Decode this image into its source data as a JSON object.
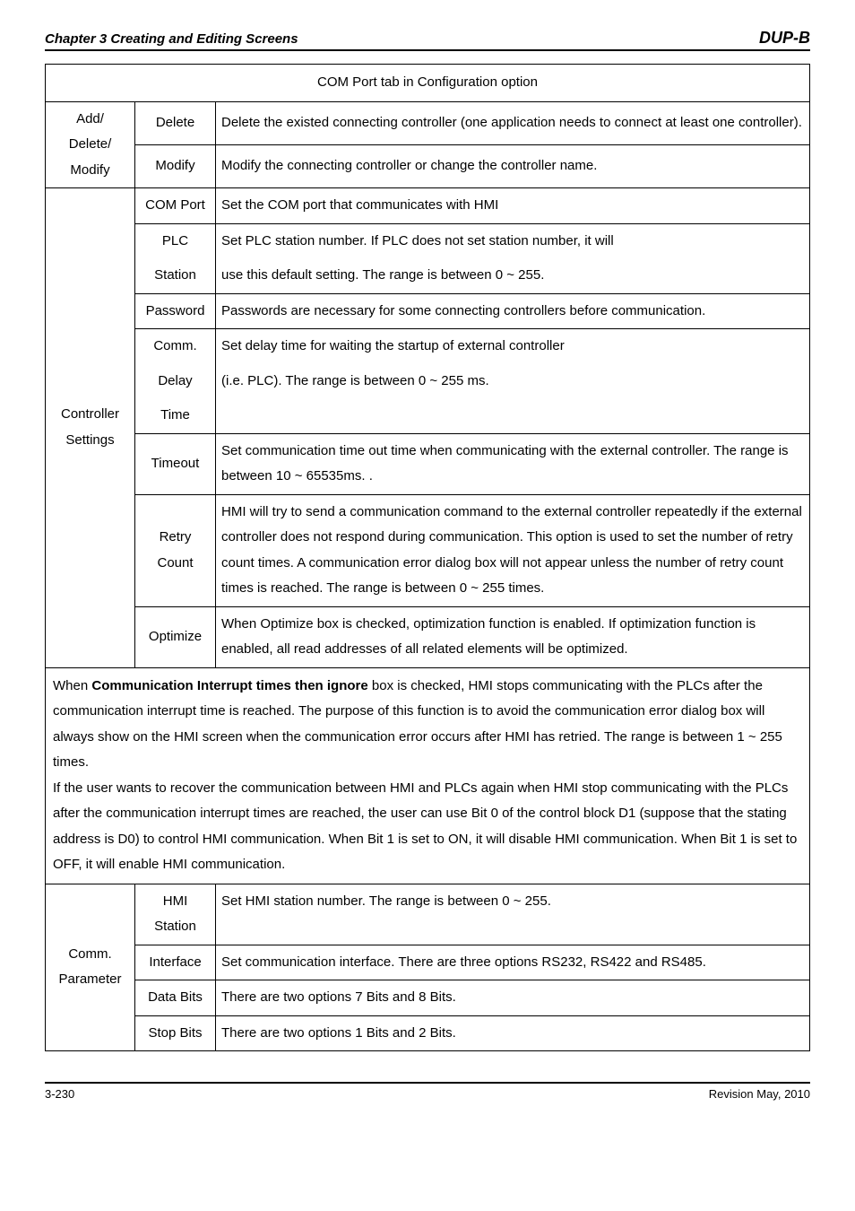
{
  "header": {
    "chapter": "Chapter 3 Creating and Editing Screens",
    "logo": "DUP-B"
  },
  "table": {
    "title": "COM Port tab in Configuration option",
    "group1_label_l1": "Add/",
    "group1_label_l2": "Delete/",
    "group1_label_l3": "Modify",
    "delete_label": "Delete",
    "delete_desc": "Delete the existed connecting controller (one application needs to connect at least one controller).",
    "modify_label": "Modify",
    "modify_desc": "Modify the connecting controller or change the controller name.",
    "controller_label_l1": "Controller",
    "controller_label_l2": "Settings",
    "comport_label": "COM Port",
    "comport_desc": "Set the COM port that communicates with HMI",
    "plc_label": "PLC",
    "plc_desc": "Set PLC station number. If PLC does not set station number, it will",
    "station_label": "Station",
    "station_desc": "use this default setting. The range is between 0 ~ 255.",
    "password_label": "Password",
    "password_desc": "Passwords are necessary for some connecting controllers before communication.",
    "comm_label": "Comm.",
    "comm_desc": "Set delay time for waiting the startup of external controller",
    "delay_label": "Delay",
    "delay_desc": "(i.e. PLC). The range is between 0 ~ 255 ms.",
    "time_label": "Time",
    "timeout_label": "Timeout",
    "timeout_desc": "Set communication time out time when communicating with the external controller. The range is between 10 ~ 65535ms. .",
    "retry_label_l1": "Retry",
    "retry_label_l2": "Count",
    "retry_desc": "HMI will try to send a communication command to the external controller repeatedly if the external controller does not respond during communication. This option is used to set the number of retry count times. A communication error dialog box will not appear unless the number of retry count times is reached. The range is between 0 ~ 255 times.",
    "optimize_label": "Optimize",
    "optimize_desc": "When Optimize box is checked, optimization function is enabled. If optimization function is enabled, all read addresses of all related elements will be optimized.",
    "note_prefix": "When ",
    "note_bold": "Communication Interrupt times then ignore",
    "note_rest": " box is checked, HMI stops communicating with the PLCs after the communication interrupt time is reached. The purpose of this function is to avoid the communication error dialog box will always show on the HMI screen when the communication error occurs after HMI has retried. The range is between 1 ~ 255 times.",
    "note_p2": "If the user wants to recover the communication between HMI and PLCs again when HMI stop communicating with the PLCs after the communication interrupt times are reached, the user can use Bit 0 of the control block D1 (suppose that the stating address is D0) to control HMI communication. When Bit 1 is set to ON, it will disable HMI communication. When Bit 1 is set to OFF, it will enable HMI communication.",
    "commparam_label_l1": "Comm.",
    "commparam_label_l2": "Parameter",
    "hmi_label_l1": "HMI",
    "hmi_label_l2": "Station",
    "hmi_desc": "Set HMI station number. The range is between 0 ~ 255.",
    "interface_label": "Interface",
    "interface_desc": "Set communication interface. There are three options RS232, RS422 and RS485.",
    "databits_label": "Data Bits",
    "databits_desc": "There are two options 7 Bits and 8 Bits.",
    "stopbits_label": "Stop Bits",
    "stopbits_desc": "There are two options 1 Bits and 2 Bits."
  },
  "footer": {
    "page": "3-230",
    "revision": "Revision May, 2010"
  }
}
